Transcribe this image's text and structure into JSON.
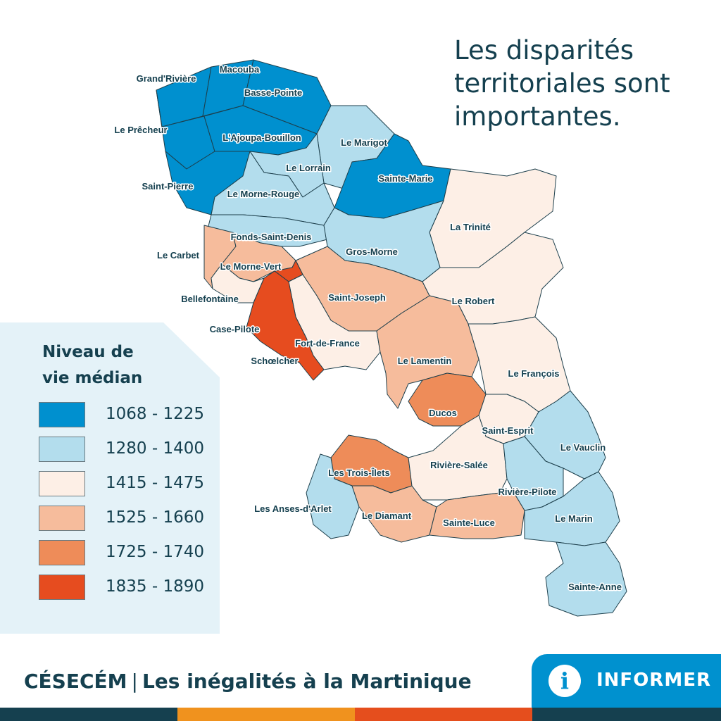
{
  "title": {
    "line1": "Les disparités",
    "line2": "territoriales sont",
    "line3": "importantes."
  },
  "legend": {
    "title_line1": "Niveau de",
    "title_line2": "vie médian",
    "classes": [
      {
        "label": "1068 - 1225",
        "color": "#0090cf"
      },
      {
        "label": "1280 - 1400",
        "color": "#b3dded"
      },
      {
        "label": "1415 - 1475",
        "color": "#fdefe6"
      },
      {
        "label": "1525 - 1660",
        "color": "#f6bc9c"
      },
      {
        "label": "1725 - 1740",
        "color": "#ee8c59"
      },
      {
        "label": "1835 - 1890",
        "color": "#e64c1f"
      }
    ]
  },
  "communes": [
    {
      "name": "Grand'Rivière",
      "class": 0
    },
    {
      "name": "Macouba",
      "class": 0
    },
    {
      "name": "Basse-Pointe",
      "class": 0
    },
    {
      "name": "Le Prêcheur",
      "class": 0
    },
    {
      "name": "L'Ajoupa-Bouillon",
      "class": 0
    },
    {
      "name": "Le Marigot",
      "class": 1
    },
    {
      "name": "Le Lorrain",
      "class": 1
    },
    {
      "name": "Sainte-Marie",
      "class": 0
    },
    {
      "name": "Saint-Pierre",
      "class": 0
    },
    {
      "name": "Le Morne-Rouge",
      "class": 1
    },
    {
      "name": "La Trinité",
      "class": 2
    },
    {
      "name": "Fonds-Saint-Denis",
      "class": 1
    },
    {
      "name": "Le Carbet",
      "class": 3
    },
    {
      "name": "Gros-Morne",
      "class": 1
    },
    {
      "name": "Le Morne-Vert",
      "class": 3
    },
    {
      "name": "Bellefontaine",
      "class": 2
    },
    {
      "name": "Saint-Joseph",
      "class": 3
    },
    {
      "name": "Le Robert",
      "class": 2
    },
    {
      "name": "Case-Pilote",
      "class": 5
    },
    {
      "name": "Fort-de-France",
      "class": 2
    },
    {
      "name": "Schœlcher",
      "class": 5
    },
    {
      "name": "Le Lamentin",
      "class": 3
    },
    {
      "name": "Le François",
      "class": 2
    },
    {
      "name": "Ducos",
      "class": 4
    },
    {
      "name": "Saint-Esprit",
      "class": 2
    },
    {
      "name": "Le Vauclin",
      "class": 1
    },
    {
      "name": "Les Trois-Îlets",
      "class": 4
    },
    {
      "name": "Rivière-Salée",
      "class": 2
    },
    {
      "name": "Rivière-Pilote",
      "class": 1
    },
    {
      "name": "Les Anses-d'Arlet",
      "class": 1
    },
    {
      "name": "Le Diamant",
      "class": 3
    },
    {
      "name": "Sainte-Luce",
      "class": 3
    },
    {
      "name": "Le Marin",
      "class": 1
    },
    {
      "name": "Sainte-Anne",
      "class": 1
    }
  ],
  "footer": {
    "brand": "CÉSECÉM",
    "separator": "|",
    "subtitle": "Les inégalités à la Martinique",
    "button_label": "INFORMER",
    "info_icon": "i"
  },
  "colors": {
    "text": "#15404f",
    "legend_panel": "#e4f2f8",
    "accent": "#0091cf",
    "stripe_dark": "#15404f",
    "stripe_orange": "#f0921e",
    "stripe_red": "#e54e1d"
  }
}
